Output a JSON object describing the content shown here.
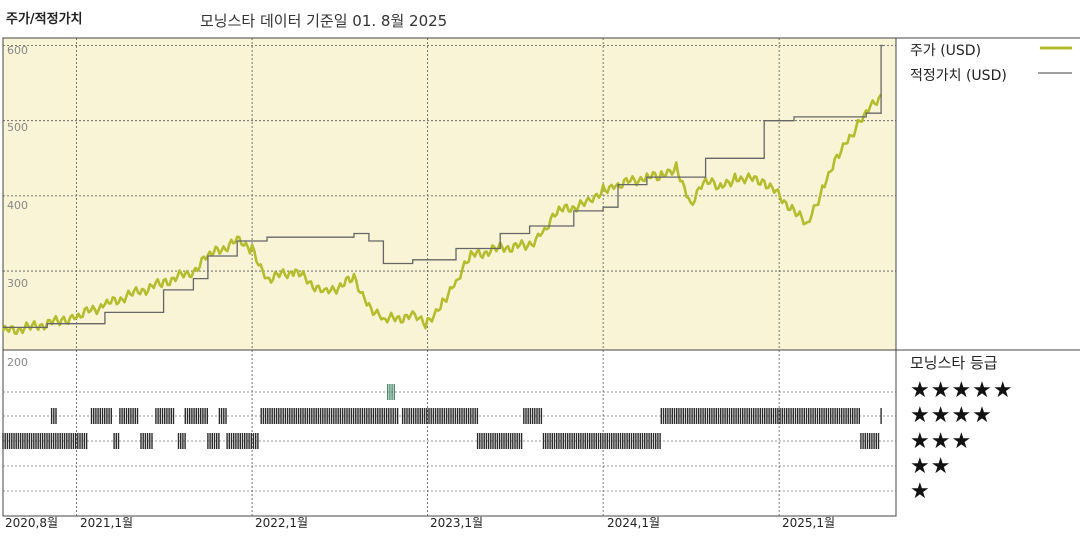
{
  "header": {
    "title": "주가/적정가치",
    "subtitle": "모닝스타 데이터 기준일 01. 8월 2025"
  },
  "legend": {
    "price_label": "주가 (USD)",
    "fair_label": "적정가치 (USD)",
    "price_color": "#b5bd2e",
    "fair_color": "#666666"
  },
  "rating": {
    "title": "모닝스타 등급",
    "stars": [
      "★★★★★",
      "★★★★",
      "★★★",
      "★★",
      "★"
    ],
    "bar_color": "#2b2b2b",
    "highlight_color": "#4a8a6e"
  },
  "chart_data": {
    "type": "line",
    "title": "",
    "ylim": [
      195,
      610
    ],
    "yticks": [
      "600",
      "500",
      "400",
      "300",
      "200"
    ],
    "xticks": [
      "2020,8월",
      "2021,1월",
      "2022,1월",
      "2023,1월",
      "2024,1월",
      "2025,1월"
    ],
    "xrange": [
      "2020-08",
      "2025-08"
    ],
    "series": [
      {
        "name": "주가 (USD)",
        "x": [
          "2020-08",
          "2020-10",
          "2020-12",
          "2021-01",
          "2021-03",
          "2021-05",
          "2021-07",
          "2021-09",
          "2021-10",
          "2021-12",
          "2022-01",
          "2022-02",
          "2022-04",
          "2022-06",
          "2022-08",
          "2022-09",
          "2022-10",
          "2022-12",
          "2023-01",
          "2023-02",
          "2023-03",
          "2023-04",
          "2023-06",
          "2023-08",
          "2023-09",
          "2023-10",
          "2023-12",
          "2024-01",
          "2024-02",
          "2024-04",
          "2024-05",
          "2024-06",
          "2024-07",
          "2024-08",
          "2024-09",
          "2024-10",
          "2024-12",
          "2025-02",
          "2025-03",
          "2025-04",
          "2025-05",
          "2025-06",
          "2025-07",
          "2025-08"
        ],
        "values": [
          220,
          225,
          235,
          240,
          255,
          270,
          285,
          300,
          320,
          340,
          330,
          290,
          300,
          270,
          290,
          255,
          235,
          240,
          230,
          260,
          285,
          320,
          330,
          335,
          355,
          380,
          390,
          410,
          415,
          425,
          425,
          440,
          390,
          420,
          410,
          425,
          420,
          380,
          360,
          410,
          455,
          480,
          510,
          535
        ]
      },
      {
        "name": "적정가치 (USD)",
        "x": [
          "2020-08",
          "2020-11",
          "2021-03",
          "2021-07",
          "2021-09",
          "2021-10",
          "2021-12",
          "2022-02",
          "2022-08",
          "2022-09",
          "2022-10",
          "2022-12",
          "2023-03",
          "2023-06",
          "2023-08",
          "2023-11",
          "2024-01",
          "2024-02",
          "2024-04",
          "2024-08",
          "2024-12",
          "2025-02",
          "2025-07",
          "2025-08"
        ],
        "values": [
          225,
          230,
          245,
          275,
          290,
          320,
          340,
          345,
          350,
          340,
          310,
          315,
          330,
          350,
          360,
          380,
          385,
          415,
          425,
          450,
          500,
          505,
          510,
          600
        ]
      }
    ],
    "rating_rows": {
      "5": [
        [
          "2022-10-10",
          "2022-10-25"
        ]
      ],
      "4": [
        [
          "2020-11-10",
          "2020-11-20"
        ],
        [
          "2021-02-01",
          "2021-03-15"
        ],
        [
          "2021-04-01",
          "2021-05-10"
        ],
        [
          "2021-06-15",
          "2021-07-25"
        ],
        [
          "2021-08-15",
          "2021-10-01"
        ],
        [
          "2021-10-25",
          "2021-11-10"
        ],
        [
          "2022-01-20",
          "2022-10-31"
        ],
        [
          "2022-11-10",
          "2023-04-15"
        ],
        [
          "2023-07-20",
          "2023-08-30"
        ],
        [
          "2024-05-01",
          "2025-06-20"
        ],
        [
          "2025-08-01",
          "2025-08-05"
        ]
      ],
      "3": [
        [
          "2020-08-01",
          "2021-01-25"
        ],
        [
          "2021-03-20",
          "2021-04-01"
        ],
        [
          "2021-05-15",
          "2021-06-10"
        ],
        [
          "2021-08-01",
          "2021-08-15"
        ],
        [
          "2021-10-01",
          "2021-10-25"
        ],
        [
          "2021-11-10",
          "2022-01-15"
        ],
        [
          "2023-04-15",
          "2023-07-20"
        ],
        [
          "2023-08-30",
          "2024-05-01"
        ],
        [
          "2025-06-20",
          "2025-07-30"
        ]
      ],
      "2": [],
      "1": []
    }
  }
}
